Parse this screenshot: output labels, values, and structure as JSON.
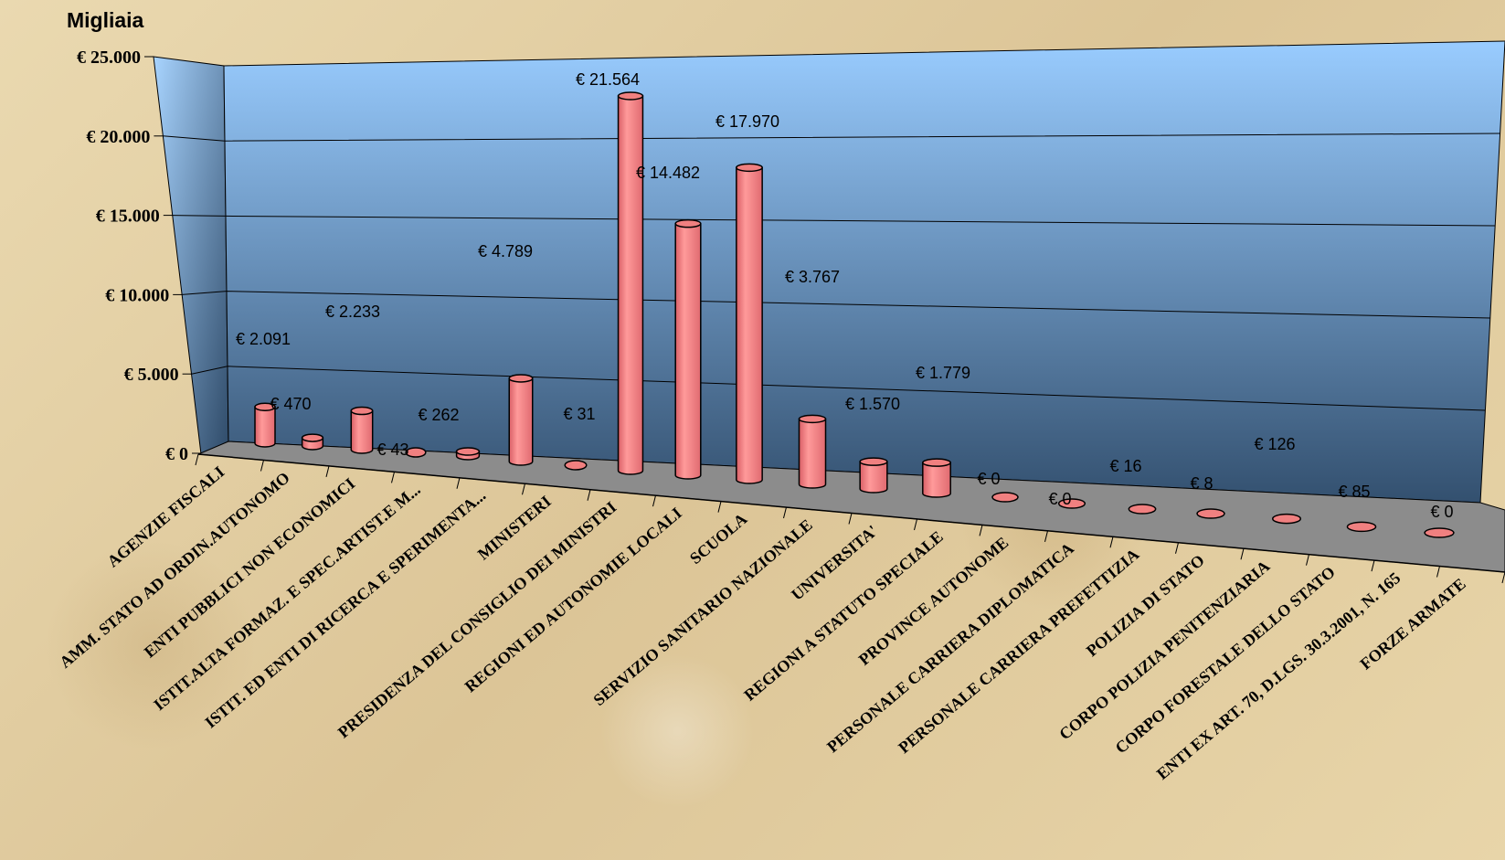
{
  "chart_data": {
    "type": "bar",
    "unit_label": "Migliaia",
    "ylim": [
      0,
      25000
    ],
    "y_ticks": [
      "€ 0",
      "€ 5.000",
      "€ 10.000",
      "€ 15.000",
      "€ 20.000",
      "€ 25.000"
    ],
    "grid": true,
    "categories": [
      "AGENZIE FISCALI",
      "AMM. STATO AD ORDIN.AUTONOMO",
      "ENTI PUBBLICI NON ECONOMICI",
      "ISTIT.ALTA FORMAZ. E SPEC.ARTIST.E M...",
      "ISTIT. ED ENTI DI RICERCA E SPERIMENTA...",
      "MINISTERI",
      "PRESIDENZA DEL CONSIGLIO DEI MINISTRI",
      "REGIONI ED AUTONOMIE LOCALI",
      "SCUOLA",
      "SERVIZIO SANITARIO NAZIONALE",
      "UNIVERSITA'",
      "REGIONI A STATUTO SPECIALE",
      "PROVINCE AUTONOME",
      "PERSONALE CARRIERA DIPLOMATICA",
      "PERSONALE CARRIERA PREFETTIZIA",
      "POLIZIA DI STATO",
      "CORPO POLIZIA PENITENZIARIA",
      "CORPO FORESTALE DELLO STATO",
      "ENTI EX ART. 70, D.LGS. 30.3.2001, N. 165",
      "FORZE ARMATE"
    ],
    "values": [
      2091,
      470,
      2233,
      43,
      262,
      4789,
      31,
      21564,
      14482,
      17970,
      3767,
      1570,
      1779,
      0,
      0,
      16,
      8,
      126,
      85,
      0
    ],
    "data_labels": [
      "€ 2.091",
      "€ 470",
      "€ 2.233",
      "€ 43",
      "€ 262",
      "€ 4.789",
      "€ 31",
      "€ 21.564",
      "€ 14.482",
      "€ 17.970",
      "€ 3.767",
      "€ 1.570",
      "€ 1.779",
      "€ 0",
      "€ 0",
      "€ 16",
      "€ 8",
      "€ 126",
      "€ 85",
      "€ 0"
    ],
    "colors": {
      "bar_fill": "#f08080",
      "bar_stroke": "#000000",
      "wall_top": "#99ccff",
      "wall_bottom": "#33506f",
      "floor": "#8c8c8c"
    }
  }
}
